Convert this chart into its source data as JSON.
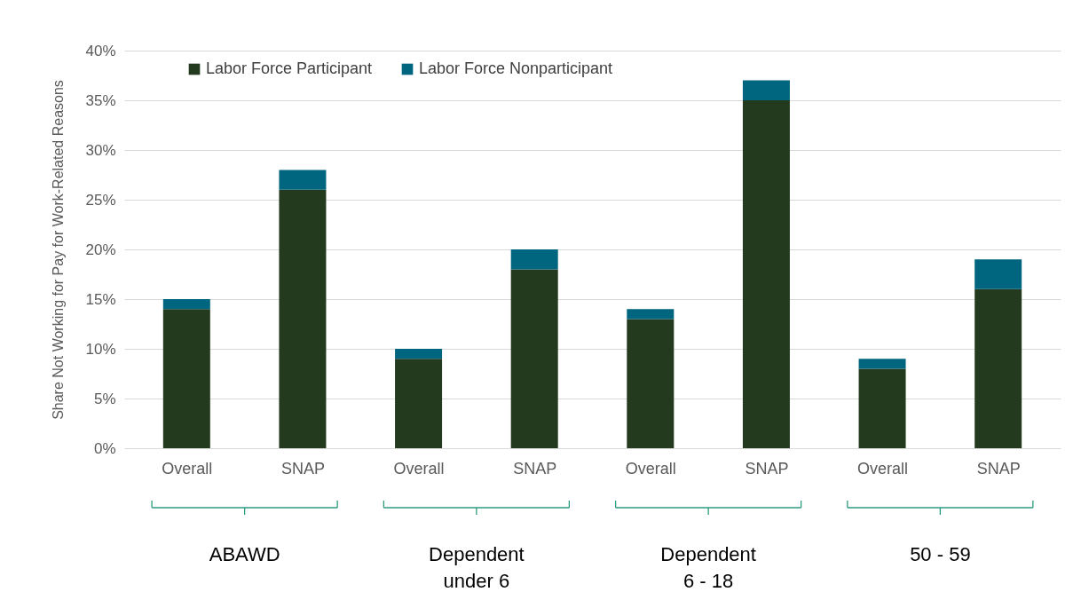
{
  "chart_data": {
    "type": "bar",
    "stacked": true,
    "ylabel": "Share Not Working for Pay for Work-Related Reasons",
    "categories": [
      "Overall",
      "SNAP",
      "Overall",
      "SNAP",
      "Overall",
      "SNAP",
      "Overall",
      "SNAP"
    ],
    "series": [
      {
        "name": "Labor Force Participant",
        "color": "#233a1e",
        "values": [
          14,
          26,
          9,
          18,
          13,
          35,
          8,
          16
        ]
      },
      {
        "name": "Labor Force Nonparticipant",
        "color": "#00657f",
        "values": [
          1,
          2,
          1,
          2,
          1,
          2,
          1,
          3
        ]
      }
    ],
    "ylim": [
      0,
      40
    ],
    "yticks": [
      {
        "value": 0,
        "label": "0%"
      },
      {
        "value": 5,
        "label": "5%"
      },
      {
        "value": 10,
        "label": "10%"
      },
      {
        "value": 15,
        "label": "15%"
      },
      {
        "value": 20,
        "label": "20%"
      },
      {
        "value": 25,
        "label": "25%"
      },
      {
        "value": 30,
        "label": "30%"
      },
      {
        "value": 35,
        "label": "35%"
      },
      {
        "value": 40,
        "label": "40%"
      }
    ],
    "grid": "y",
    "legend": "top left",
    "annotations": [
      "ABAWD",
      "Dependent\nunder 6",
      "Dependent\n6 - 18",
      "50 - 59"
    ]
  }
}
